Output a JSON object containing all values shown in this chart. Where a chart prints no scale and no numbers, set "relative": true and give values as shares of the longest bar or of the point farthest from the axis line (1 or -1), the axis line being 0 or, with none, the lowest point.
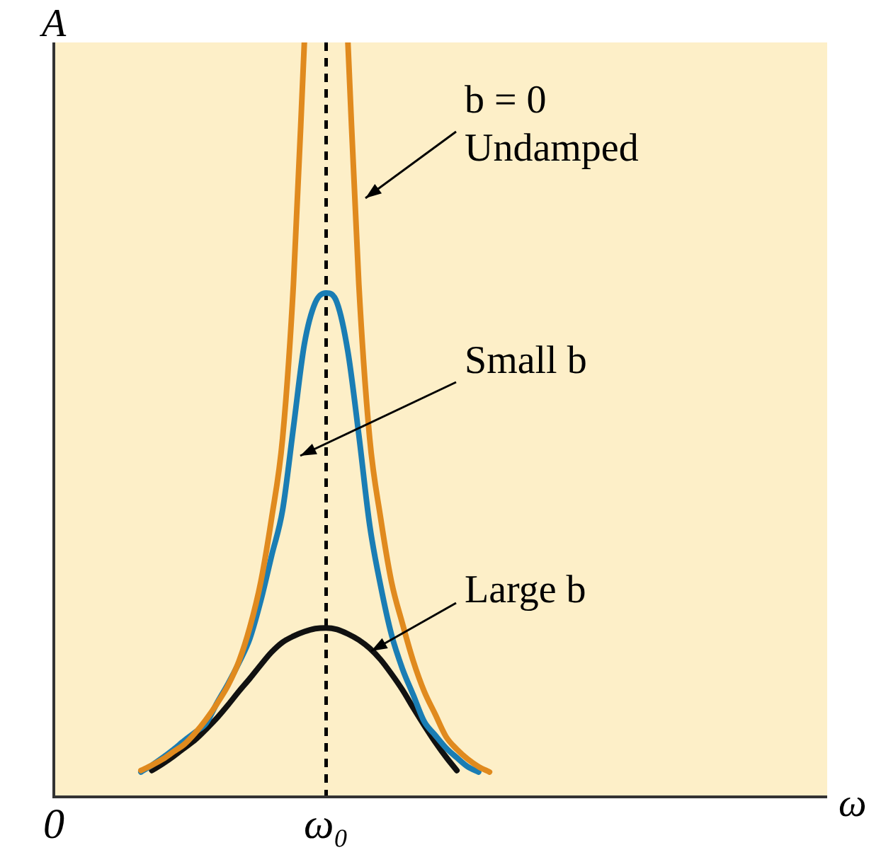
{
  "chart_data": {
    "type": "line",
    "relative": true,
    "xlabel": "ω",
    "ylabel": "A",
    "tick_labels": "x",
    "grid": false,
    "marker": "none",
    "line_style": "solid",
    "categories": [
      "0",
      null,
      null,
      null,
      null,
      null,
      null,
      null,
      null,
      null,
      null,
      null,
      null,
      null,
      null,
      null,
      null,
      null,
      null,
      null,
      null,
      null,
      null,
      null,
      null,
      "ω₀",
      null,
      null,
      null,
      null,
      null,
      null,
      null,
      null,
      null,
      null,
      null,
      null,
      null,
      null,
      null,
      null,
      null,
      null,
      null,
      null,
      null,
      null,
      null,
      null,
      null,
      null,
      null,
      null,
      null,
      null,
      null,
      null,
      null,
      null,
      null,
      null,
      null,
      null,
      null,
      null,
      null,
      null,
      null,
      null,
      null,
      null
    ],
    "series": [
      {
        "color": "#e08a1e",
        "values": [
          null,
          null,
          null,
          null,
          null,
          null,
          null,
          null,
          0.035,
          0.042,
          0.05,
          0.06,
          0.07,
          0.085,
          0.103,
          0.124,
          0.148,
          0.18,
          0.225,
          0.285,
          0.37,
          0.475,
          0.68,
          1.0,
          null,
          null,
          null,
          1.0,
          0.68,
          0.475,
          0.37,
          0.285,
          0.23,
          0.18,
          0.14,
          0.11,
          0.08,
          0.063,
          0.05,
          0.04,
          0.033,
          null,
          null,
          null,
          null,
          null,
          null,
          null,
          null,
          null,
          null,
          null,
          null,
          null,
          null,
          null,
          null,
          null,
          null,
          null,
          null,
          null,
          null,
          null,
          null,
          null,
          null,
          null,
          null,
          null,
          null,
          null
        ]
      },
      {
        "color": "#1a7db4",
        "values": [
          null,
          null,
          null,
          null,
          null,
          null,
          null,
          null,
          0.033,
          0.042,
          0.052,
          0.063,
          0.075,
          0.086,
          0.098,
          0.125,
          0.15,
          0.178,
          0.21,
          0.26,
          0.32,
          0.38,
          0.49,
          0.6,
          0.655,
          0.668,
          0.655,
          0.59,
          0.48,
          0.36,
          0.28,
          0.215,
          0.17,
          0.135,
          0.1,
          0.082,
          0.065,
          0.052,
          0.04,
          0.033,
          null,
          null,
          null,
          null,
          null,
          null,
          null,
          null,
          null,
          null,
          null,
          null,
          null,
          null,
          null,
          null,
          null,
          null,
          null,
          null,
          null,
          null,
          null,
          null,
          null,
          null,
          null,
          null,
          null,
          null,
          null,
          null
        ]
      },
      {
        "color": "#111111",
        "values": [
          null,
          null,
          null,
          null,
          null,
          null,
          null,
          null,
          null,
          0.035,
          0.044,
          0.054,
          0.065,
          0.076,
          0.09,
          0.105,
          0.122,
          0.14,
          0.157,
          0.175,
          0.192,
          0.205,
          0.213,
          0.219,
          0.223,
          0.224,
          0.222,
          0.216,
          0.208,
          0.197,
          0.182,
          0.163,
          0.142,
          0.118,
          0.095,
          0.073,
          0.053,
          0.035,
          null,
          null,
          null,
          null,
          null,
          null,
          null,
          null,
          null,
          null,
          null,
          null,
          null,
          null,
          null,
          null,
          null,
          null,
          null,
          null,
          null,
          null,
          null,
          null,
          null,
          null,
          null,
          null,
          null,
          null,
          null,
          null,
          null,
          null
        ]
      }
    ],
    "ref_lines": [
      {
        "axis": "x",
        "value": "ω₀",
        "color": "#000000",
        "line_style": "dashed"
      }
    ],
    "annotations": [
      "b = 0\nUndamped",
      "Small b",
      "Large b"
    ]
  }
}
